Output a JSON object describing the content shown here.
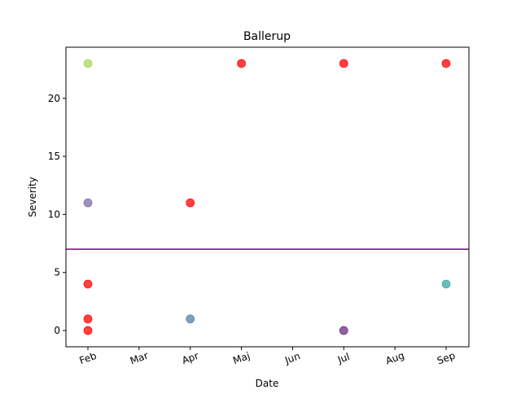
{
  "chart_data": {
    "type": "scatter",
    "title": "Ballerup",
    "xlabel": "Date",
    "ylabel": "Severity",
    "x_ticks": [
      "Feb",
      "Mar",
      "Apr",
      "Maj",
      "Jun",
      "Jul",
      "Aug",
      "Sep"
    ],
    "y_ticks": [
      0,
      5,
      10,
      15,
      20
    ],
    "ylim": [
      -1.4,
      24.4
    ],
    "grid": false,
    "legend": "none",
    "threshold_line": {
      "y": 7,
      "color": "#800080"
    },
    "points": [
      {
        "x": "Feb",
        "y": 23,
        "color": "#a8d85a"
      },
      {
        "x": "Feb",
        "y": 11,
        "color": "#7b6ea6"
      },
      {
        "x": "Feb",
        "y": 4,
        "color": "#ff0000"
      },
      {
        "x": "Feb",
        "y": 1,
        "color": "#ff0000"
      },
      {
        "x": "Feb",
        "y": 0,
        "color": "#ff0000"
      },
      {
        "x": "Apr",
        "y": 11,
        "color": "#ff0000"
      },
      {
        "x": "Apr",
        "y": 1,
        "color": "#5a7fa0"
      },
      {
        "x": "Maj",
        "y": 23,
        "color": "#ff0000"
      },
      {
        "x": "Jul",
        "y": 23,
        "color": "#ff0000"
      },
      {
        "x": "Jul",
        "y": 0,
        "color": "#6a2c80"
      },
      {
        "x": "Sep",
        "y": 23,
        "color": "#ff0000"
      },
      {
        "x": "Sep",
        "y": 4,
        "color": "#3aa6a0"
      }
    ]
  }
}
